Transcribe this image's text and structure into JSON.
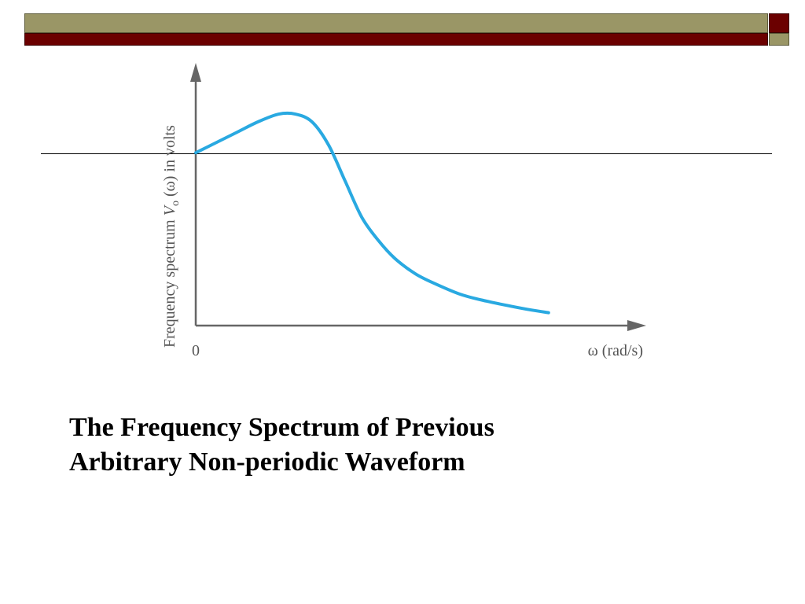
{
  "colors": {
    "olive": "#9a9666",
    "maroon": "#6b0000",
    "curve": "#29a9e1",
    "axis": "#666666"
  },
  "slide": {
    "caption_line1": "The Frequency Spectrum of Previous",
    "caption_line2": "Arbitrary Non-periodic Waveform"
  },
  "chart_data": {
    "type": "line",
    "title": "",
    "xlabel": "ω (rad/s)",
    "ylabel_parts": {
      "before": "Frequency spectrum ",
      "var": "V",
      "sub": "o",
      "after": " (ω) in volts"
    },
    "x_tick_labels": [
      "0"
    ],
    "xlim": [
      0,
      10
    ],
    "ylim": [
      0,
      10
    ],
    "grid": false,
    "legend": "none",
    "series": [
      {
        "x": [
          0,
          0.5,
          1.0,
          1.5,
          2.0,
          2.4,
          2.8,
          3.2,
          3.6,
          4.0,
          4.4,
          4.8,
          5.3,
          5.8,
          6.4,
          7.0,
          7.6,
          8.1,
          8.5
        ],
        "y": [
          6.7,
          7.1,
          7.5,
          7.9,
          8.2,
          8.2,
          7.9,
          7.0,
          5.6,
          4.2,
          3.3,
          2.6,
          2.0,
          1.6,
          1.2,
          0.95,
          0.75,
          0.6,
          0.5
        ]
      }
    ]
  }
}
